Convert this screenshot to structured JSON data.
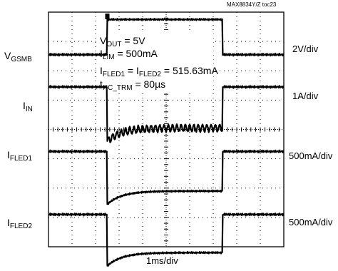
{
  "header": {
    "tag": "MAX8834Y/Z toc23"
  },
  "channels": [
    {
      "base": "V",
      "sub": "GSMB",
      "scale": "2V/div"
    },
    {
      "base": "I",
      "sub": "IN",
      "scale": "1A/div"
    },
    {
      "base": "I",
      "sub": "FLED1",
      "scale": "500mA/div"
    },
    {
      "base": "I",
      "sub": "FLED2",
      "scale": "500mA/div"
    }
  ],
  "annotations": {
    "l1": {
      "base": "V",
      "sub": "OUT",
      "text": " = 5V"
    },
    "l2": {
      "base": "I",
      "sub": "LIM",
      "text": " = 500mA"
    },
    "l3": {
      "a": "I",
      "a_sub": "FLED1",
      "mid": " = I",
      "b_sub": "FLED2",
      "text": " = 515.63mA"
    },
    "l4": {
      "base": "t",
      "sub": "HC_TRM",
      "text": " = 80µs"
    }
  },
  "xaxis": {
    "scale": "1ms/div"
  },
  "colors": {
    "trace": "#000000",
    "grid": "#000000",
    "background": "#ffffff"
  },
  "chart_data": {
    "type": "line",
    "x_unit": "div",
    "xlim": [
      0,
      10
    ],
    "ylim": [
      0,
      8
    ],
    "grid": true,
    "divisions": {
      "x": 10,
      "y": 8
    },
    "series": [
      {
        "label_ref": "channels.0",
        "level_low_div": 6.55,
        "level_high_div": 7.75,
        "pulse_start_div": 2.5,
        "pulse_end_div": 7.4
      },
      {
        "label_ref": "channels.1",
        "level_low_div": 5.45,
        "level_high_div": 4.05,
        "pulse_start_div": 2.5,
        "pulse_end_div": 7.4,
        "ripple_div": 0.12
      },
      {
        "label_ref": "channels.2",
        "level_low_div": 3.25,
        "level_high_div": 1.9,
        "pulse_start_div": 2.5,
        "pulse_end_div": 7.4
      },
      {
        "label_ref": "channels.3",
        "level_low_div": 1.1,
        "level_high_div": -0.2,
        "pulse_start_div": 2.5,
        "pulse_end_div": 7.4
      }
    ]
  }
}
